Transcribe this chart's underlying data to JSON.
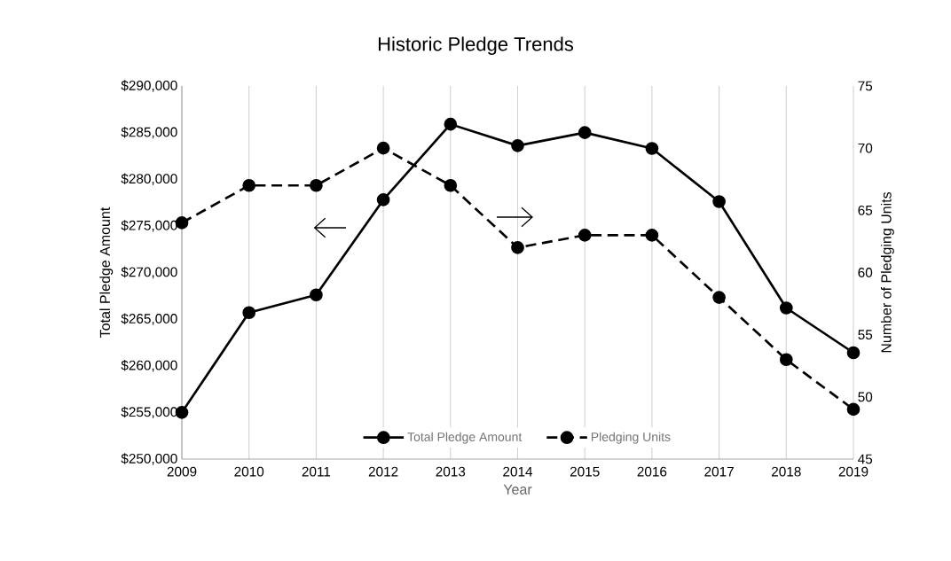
{
  "chart_data": {
    "type": "line",
    "title": "Historic Pledge Trends",
    "xlabel": "Year",
    "ylabel": "Total Pledge Amount",
    "y2label": "Number of Pledging Units",
    "x": [
      2009,
      2010,
      2011,
      2012,
      2013,
      2014,
      2015,
      2016,
      2017,
      2018,
      2019
    ],
    "xlim": [
      2009,
      2019
    ],
    "xticks": [
      2009,
      2010,
      2011,
      2012,
      2013,
      2014,
      2015,
      2016,
      2017,
      2018,
      2019
    ],
    "ylim": [
      250000,
      290000
    ],
    "yticks": [
      {
        "value": 250000,
        "label": "$250,000"
      },
      {
        "value": 255000,
        "label": "$255,000"
      },
      {
        "value": 260000,
        "label": "$260,000"
      },
      {
        "value": 265000,
        "label": "$265,000"
      },
      {
        "value": 270000,
        "label": "$270,000"
      },
      {
        "value": 275000,
        "label": "$275,000"
      },
      {
        "value": 280000,
        "label": "$280,000"
      },
      {
        "value": 285000,
        "label": "$285,000"
      },
      {
        "value": 290000,
        "label": "$290,000"
      }
    ],
    "y2lim": [
      45,
      75
    ],
    "y2ticks": [
      45,
      50,
      55,
      60,
      65,
      70,
      75
    ],
    "grid": "x",
    "legend": "bottom",
    "marker": "circle",
    "series": [
      {
        "name": "Total Pledge Amount",
        "color": "#000000",
        "line_style": "solid",
        "values": [
          255000,
          265700,
          267600,
          277800,
          285900,
          283600,
          285000,
          283300,
          277600,
          266200,
          261400
        ]
      },
      {
        "name": "Pledging Units",
        "color": "#000000",
        "line_style": "dashed",
        "axis": "y2",
        "values": [
          64,
          67,
          67,
          70,
          67,
          62,
          63,
          63,
          58,
          53,
          49
        ]
      }
    ]
  }
}
